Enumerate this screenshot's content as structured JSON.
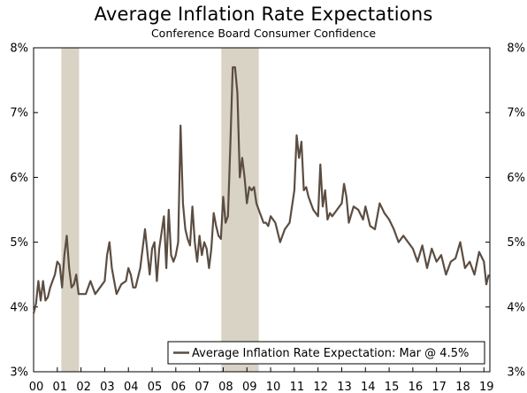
{
  "chart_data": {
    "type": "line",
    "title": "Average Inflation Rate Expectations",
    "subtitle": "Conference Board Consumer Confidence",
    "xlabel": "",
    "ylabel": "",
    "ylim": [
      3,
      8
    ],
    "y_ticks": [
      "3%",
      "4%",
      "5%",
      "6%",
      "7%",
      "8%"
    ],
    "y_tick_values": [
      3,
      4,
      5,
      6,
      7,
      8
    ],
    "x_ticks": [
      "00",
      "01",
      "02",
      "03",
      "04",
      "05",
      "06",
      "07",
      "08",
      "09",
      "10",
      "11",
      "12",
      "13",
      "14",
      "15",
      "16",
      "17",
      "18",
      "19"
    ],
    "x_tick_years": [
      2000,
      2001,
      2002,
      2003,
      2004,
      2005,
      2006,
      2007,
      2008,
      2009,
      2010,
      2011,
      2012,
      2013,
      2014,
      2015,
      2016,
      2017,
      2018,
      2019
    ],
    "xlim": [
      2000.0,
      2019.25
    ],
    "grid": false,
    "legend_position": "bottom-right",
    "recessions": [
      [
        2001.17,
        2001.92
      ],
      [
        2007.92,
        2009.5
      ]
    ],
    "line_color": "#5b4d42",
    "shade_color": "#d9d3c6",
    "series": [
      {
        "name": "Average Inflation Rate Expectation: Mar @ 4.5%",
        "x": [
          2000.0,
          2000.1,
          2000.2,
          2000.3,
          2000.4,
          2000.5,
          2000.6,
          2000.7,
          2000.8,
          2000.9,
          2001.0,
          2001.1,
          2001.2,
          2001.3,
          2001.4,
          2001.5,
          2001.6,
          2001.7,
          2001.8,
          2001.9,
          2002.0,
          2002.2,
          2002.4,
          2002.6,
          2002.8,
          2003.0,
          2003.1,
          2003.2,
          2003.3,
          2003.5,
          2003.7,
          2003.9,
          2004.0,
          2004.1,
          2004.2,
          2004.3,
          2004.5,
          2004.7,
          2004.9,
          2005.0,
          2005.1,
          2005.2,
          2005.3,
          2005.5,
          2005.6,
          2005.7,
          2005.8,
          2005.9,
          2006.0,
          2006.1,
          2006.2,
          2006.3,
          2006.4,
          2006.5,
          2006.6,
          2006.7,
          2006.8,
          2006.9,
          2007.0,
          2007.1,
          2007.2,
          2007.3,
          2007.4,
          2007.5,
          2007.6,
          2007.7,
          2007.8,
          2007.9,
          2008.0,
          2008.1,
          2008.2,
          2008.3,
          2008.4,
          2008.5,
          2008.6,
          2008.7,
          2008.8,
          2008.9,
          2009.0,
          2009.1,
          2009.2,
          2009.3,
          2009.4,
          2009.5,
          2009.6,
          2009.7,
          2009.8,
          2009.9,
          2010.0,
          2010.2,
          2010.4,
          2010.6,
          2010.8,
          2011.0,
          2011.1,
          2011.2,
          2011.3,
          2011.4,
          2011.5,
          2011.6,
          2011.8,
          2012.0,
          2012.1,
          2012.2,
          2012.3,
          2012.4,
          2012.5,
          2012.6,
          2012.8,
          2013.0,
          2013.1,
          2013.2,
          2013.3,
          2013.5,
          2013.7,
          2013.9,
          2014.0,
          2014.2,
          2014.4,
          2014.6,
          2014.8,
          2015.0,
          2015.2,
          2015.4,
          2015.6,
          2015.8,
          2016.0,
          2016.2,
          2016.4,
          2016.6,
          2016.8,
          2017.0,
          2017.2,
          2017.4,
          2017.6,
          2017.8,
          2018.0,
          2018.2,
          2018.4,
          2018.6,
          2018.8,
          2019.0,
          2019.1,
          2019.2
        ],
        "y": [
          3.9,
          4.05,
          4.4,
          4.1,
          4.4,
          4.1,
          4.15,
          4.3,
          4.4,
          4.5,
          4.7,
          4.65,
          4.3,
          4.8,
          5.1,
          4.6,
          4.3,
          4.35,
          4.5,
          4.2,
          4.2,
          4.2,
          4.4,
          4.2,
          4.3,
          4.4,
          4.8,
          5.0,
          4.6,
          4.2,
          4.35,
          4.4,
          4.6,
          4.5,
          4.3,
          4.3,
          4.6,
          5.2,
          4.5,
          4.9,
          5.0,
          4.4,
          4.9,
          5.4,
          4.6,
          5.5,
          4.8,
          4.7,
          4.8,
          5.0,
          6.8,
          5.6,
          5.2,
          5.05,
          4.95,
          5.55,
          5.0,
          4.7,
          5.1,
          4.8,
          5.0,
          4.9,
          4.6,
          4.9,
          5.45,
          5.25,
          5.1,
          5.05,
          5.7,
          5.3,
          5.4,
          6.5,
          7.7,
          7.7,
          7.3,
          6.0,
          6.3,
          6.0,
          5.6,
          5.85,
          5.8,
          5.85,
          5.6,
          5.5,
          5.4,
          5.3,
          5.3,
          5.25,
          5.4,
          5.3,
          5.0,
          5.2,
          5.3,
          5.8,
          6.65,
          6.3,
          6.55,
          5.8,
          5.85,
          5.7,
          5.5,
          5.4,
          6.2,
          5.55,
          5.8,
          5.35,
          5.45,
          5.4,
          5.5,
          5.6,
          5.9,
          5.7,
          5.3,
          5.55,
          5.5,
          5.35,
          5.55,
          5.25,
          5.2,
          5.6,
          5.45,
          5.35,
          5.2,
          5.0,
          5.1,
          5.0,
          4.9,
          4.7,
          4.95,
          4.6,
          4.9,
          4.7,
          4.8,
          4.5,
          4.7,
          4.75,
          5.0,
          4.6,
          4.7,
          4.5,
          4.85,
          4.7,
          4.35,
          4.5
        ]
      }
    ]
  }
}
